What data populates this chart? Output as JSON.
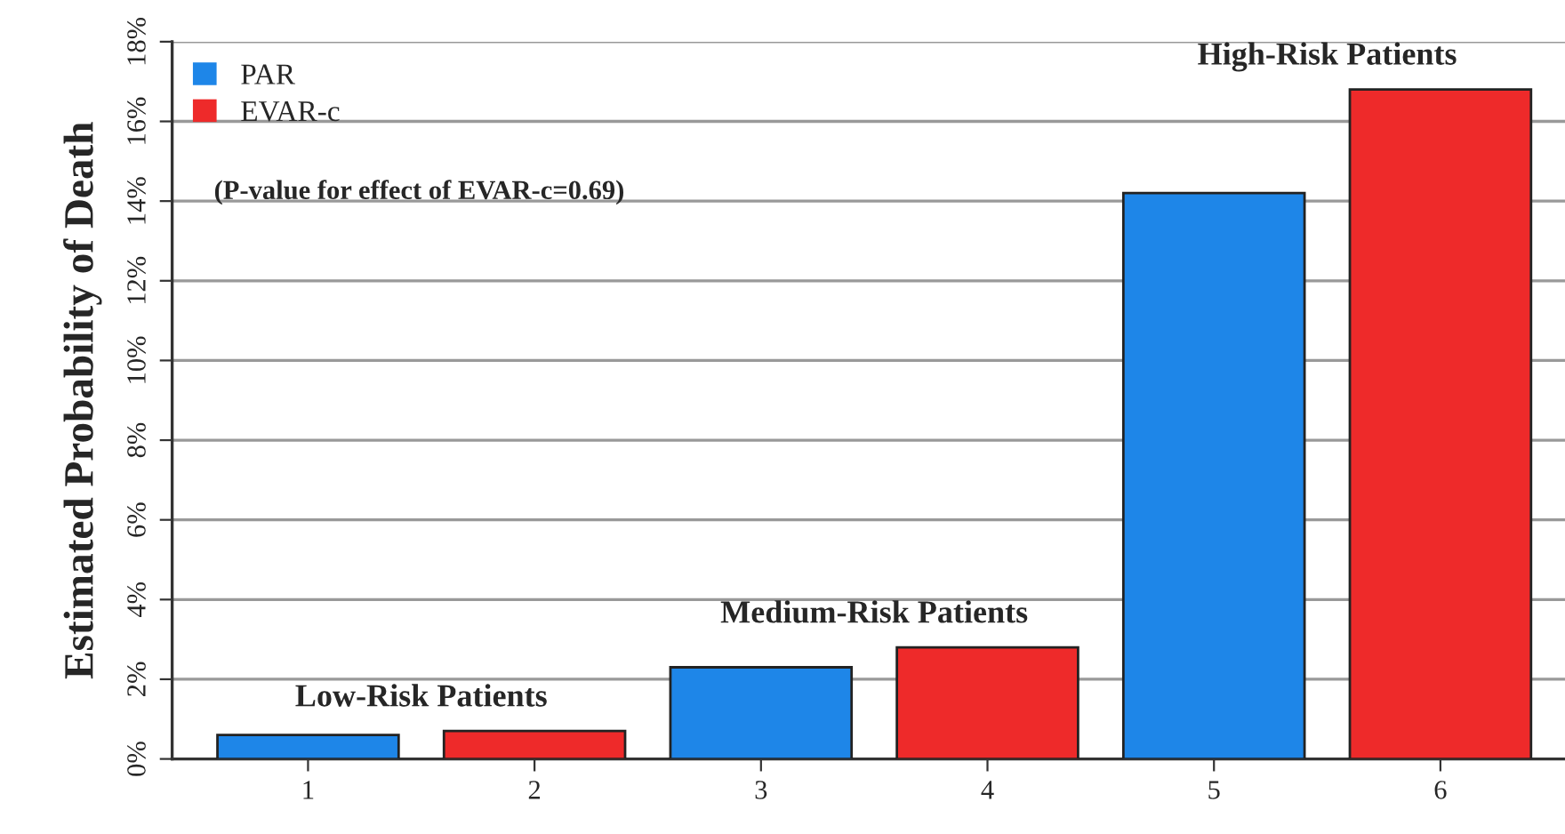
{
  "chart_data": {
    "type": "bar",
    "ylabel": "Estimated Probability of Death",
    "categories": [
      "1",
      "2",
      "3",
      "4",
      "5",
      "6"
    ],
    "series": [
      {
        "name": "PAR",
        "color": "#1e86e8",
        "values": [
          0.6,
          null,
          2.3,
          null,
          14.2,
          null
        ]
      },
      {
        "name": "EVAR-c",
        "color": "#ee2a2a",
        "values": [
          null,
          0.7,
          null,
          2.8,
          null,
          16.8
        ]
      }
    ],
    "ylim": [
      0,
      18
    ],
    "yticks": [
      {
        "value": 0,
        "label": "0%"
      },
      {
        "value": 2,
        "label": "2%"
      },
      {
        "value": 4,
        "label": "4%"
      },
      {
        "value": 6,
        "label": "6%"
      },
      {
        "value": 8,
        "label": "8%"
      },
      {
        "value": 10,
        "label": "10%"
      },
      {
        "value": 12,
        "label": "12%"
      },
      {
        "value": 14,
        "label": "14%"
      },
      {
        "value": 16,
        "label": "16%"
      },
      {
        "value": 18,
        "label": "18%"
      }
    ],
    "grid": "y",
    "legend": "top left",
    "annotations": [
      "(P-value for effect of EVAR-c=0.69)",
      "Low-Risk Patients",
      "Medium-Risk Patients",
      "High-Risk Patients"
    ]
  }
}
